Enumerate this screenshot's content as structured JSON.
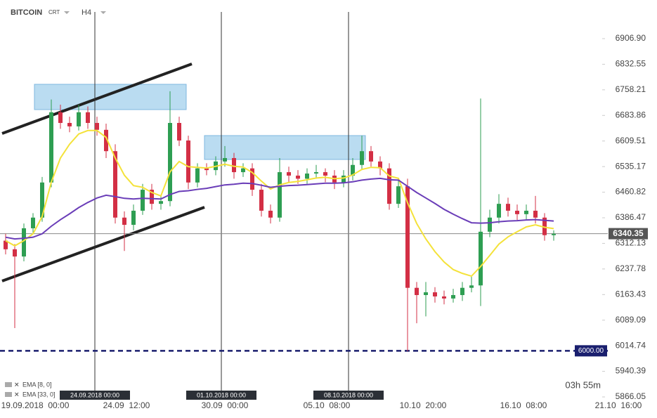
{
  "header": {
    "symbol": "BITCOIN",
    "mode": "CRT",
    "interval": "H4"
  },
  "legend": [
    "EMA [8, 0]",
    "EMA [33, 0]"
  ],
  "countdown": "03h 55m",
  "chart_data": {
    "type": "candlestick",
    "ylim": [
      5866.05,
      6906.9
    ],
    "yticks": [
      {
        "value": 6906.9,
        "label": "6906.90"
      },
      6832.55,
      6758.21,
      6683.86,
      6609.51,
      6535.17,
      6460.82,
      6386.47,
      6312.13,
      6237.78,
      6163.43,
      6089.09,
      6014.74,
      5940.39,
      5866.05
    ],
    "x_labels": [
      "19.09.2018  00:00",
      "24.09  12:00",
      "30.09  00:00",
      "05.10  08:00",
      "10.10  20:00",
      "16.10  08:00",
      "21.10  16:00"
    ],
    "markers": [
      "24.09.2018 00:00",
      "01.10.2018 00:00",
      "08.10.2018 00:00"
    ],
    "up_color": "#2e9e52",
    "down_color": "#d32f45",
    "candles": [
      {
        "o": 6320,
        "h": 6340,
        "l": 6280,
        "c": 6295
      },
      {
        "o": 6295,
        "h": 6310,
        "l": 6066,
        "c": 6274
      },
      {
        "o": 6274,
        "h": 6370,
        "l": 6260,
        "c": 6356
      },
      {
        "o": 6356,
        "h": 6400,
        "l": 6340,
        "c": 6387
      },
      {
        "o": 6387,
        "h": 6505,
        "l": 6375,
        "c": 6489
      },
      {
        "o": 6489,
        "h": 6730,
        "l": 6475,
        "c": 6693
      },
      {
        "o": 6693,
        "h": 6715,
        "l": 6645,
        "c": 6662
      },
      {
        "o": 6662,
        "h": 6680,
        "l": 6635,
        "c": 6652
      },
      {
        "o": 6652,
        "h": 6715,
        "l": 6640,
        "c": 6693
      },
      {
        "o": 6693,
        "h": 6710,
        "l": 6645,
        "c": 6662
      },
      {
        "o": 6662,
        "h": 6680,
        "l": 6625,
        "c": 6642
      },
      {
        "o": 6642,
        "h": 6660,
        "l": 6560,
        "c": 6580
      },
      {
        "o": 6580,
        "h": 6600,
        "l": 6370,
        "c": 6387
      },
      {
        "o": 6387,
        "h": 6405,
        "l": 6290,
        "c": 6366
      },
      {
        "o": 6366,
        "h": 6425,
        "l": 6350,
        "c": 6407
      },
      {
        "o": 6407,
        "h": 6485,
        "l": 6395,
        "c": 6468
      },
      {
        "o": 6468,
        "h": 6485,
        "l": 6410,
        "c": 6427
      },
      {
        "o": 6427,
        "h": 6450,
        "l": 6410,
        "c": 6435
      },
      {
        "o": 6435,
        "h": 6754,
        "l": 6420,
        "c": 6662
      },
      {
        "o": 6662,
        "h": 6680,
        "l": 6595,
        "c": 6611
      },
      {
        "o": 6611,
        "h": 6625,
        "l": 6470,
        "c": 6489
      },
      {
        "o": 6489,
        "h": 6545,
        "l": 6475,
        "c": 6530
      },
      {
        "o": 6530,
        "h": 6545,
        "l": 6510,
        "c": 6525
      },
      {
        "o": 6525,
        "h": 6565,
        "l": 6510,
        "c": 6550
      },
      {
        "o": 6550,
        "h": 6595,
        "l": 6535,
        "c": 6560
      },
      {
        "o": 6560,
        "h": 6575,
        "l": 6500,
        "c": 6519
      },
      {
        "o": 6519,
        "h": 6545,
        "l": 6505,
        "c": 6530
      },
      {
        "o": 6530,
        "h": 6545,
        "l": 6450,
        "c": 6468
      },
      {
        "o": 6468,
        "h": 6485,
        "l": 6390,
        "c": 6407
      },
      {
        "o": 6407,
        "h": 6425,
        "l": 6370,
        "c": 6387
      },
      {
        "o": 6387,
        "h": 6560,
        "l": 6375,
        "c": 6519
      },
      {
        "o": 6519,
        "h": 6535,
        "l": 6490,
        "c": 6509
      },
      {
        "o": 6509,
        "h": 6525,
        "l": 6485,
        "c": 6500
      },
      {
        "o": 6500,
        "h": 6530,
        "l": 6485,
        "c": 6515
      },
      {
        "o": 6515,
        "h": 6540,
        "l": 6500,
        "c": 6519
      },
      {
        "o": 6519,
        "h": 6530,
        "l": 6490,
        "c": 6509
      },
      {
        "o": 6509,
        "h": 6525,
        "l": 6470,
        "c": 6489
      },
      {
        "o": 6489,
        "h": 6525,
        "l": 6475,
        "c": 6509
      },
      {
        "o": 6509,
        "h": 6560,
        "l": 6495,
        "c": 6540
      },
      {
        "o": 6540,
        "h": 6625,
        "l": 6525,
        "c": 6580
      },
      {
        "o": 6580,
        "h": 6595,
        "l": 6535,
        "c": 6550
      },
      {
        "o": 6550,
        "h": 6565,
        "l": 6510,
        "c": 6530
      },
      {
        "o": 6530,
        "h": 6545,
        "l": 6410,
        "c": 6427
      },
      {
        "o": 6427,
        "h": 6495,
        "l": 6415,
        "c": 6478
      },
      {
        "o": 6478,
        "h": 6500,
        "l": 5999,
        "c": 6183
      },
      {
        "o": 6183,
        "h": 6200,
        "l": 6080,
        "c": 6162
      },
      {
        "o": 6162,
        "h": 6200,
        "l": 6100,
        "c": 6170
      },
      {
        "o": 6170,
        "h": 6185,
        "l": 6140,
        "c": 6158
      },
      {
        "o": 6158,
        "h": 6175,
        "l": 6135,
        "c": 6152
      },
      {
        "o": 6152,
        "h": 6180,
        "l": 6140,
        "c": 6162
      },
      {
        "o": 6162,
        "h": 6200,
        "l": 6145,
        "c": 6183
      },
      {
        "o": 6183,
        "h": 6215,
        "l": 6170,
        "c": 6190
      },
      {
        "o": 6190,
        "h": 6733,
        "l": 6130,
        "c": 6346
      },
      {
        "o": 6346,
        "h": 6410,
        "l": 6330,
        "c": 6387
      },
      {
        "o": 6387,
        "h": 6455,
        "l": 6370,
        "c": 6427
      },
      {
        "o": 6427,
        "h": 6445,
        "l": 6390,
        "c": 6407
      },
      {
        "o": 6407,
        "h": 6425,
        "l": 6380,
        "c": 6397
      },
      {
        "o": 6397,
        "h": 6425,
        "l": 6380,
        "c": 6407
      },
      {
        "o": 6407,
        "h": 6450,
        "l": 6370,
        "c": 6387
      },
      {
        "o": 6387,
        "h": 6400,
        "l": 6320,
        "c": 6336
      },
      {
        "o": 6336,
        "h": 6350,
        "l": 6320,
        "c": 6340
      }
    ],
    "series": [
      {
        "name": "EMA [8, 0]",
        "color": "#f4e23a",
        "values": [
          6320,
          6305,
          6320,
          6340,
          6390,
          6490,
          6560,
          6600,
          6630,
          6640,
          6640,
          6620,
          6560,
          6510,
          6480,
          6475,
          6460,
          6450,
          6520,
          6550,
          6535,
          6533,
          6531,
          6536,
          6542,
          6536,
          6534,
          6518,
          6493,
          6470,
          6482,
          6489,
          6492,
          6497,
          6502,
          6504,
          6500,
          6502,
          6511,
          6527,
          6533,
          6532,
          6508,
          6501,
          6430,
          6370,
          6325,
          6288,
          6258,
          6236,
          6225,
          6217,
          6245,
          6277,
          6310,
          6331,
          6346,
          6360,
          6366,
          6359,
          6355
        ]
      },
      {
        "name": "EMA [33, 0]",
        "color": "#6a3db8",
        "values": [
          6330,
          6325,
          6327,
          6330,
          6340,
          6362,
          6381,
          6398,
          6416,
          6431,
          6444,
          6452,
          6448,
          6443,
          6441,
          6443,
          6442,
          6441,
          6454,
          6463,
          6465,
          6469,
          6472,
          6477,
          6482,
          6484,
          6487,
          6486,
          6481,
          6475,
          6478,
          6480,
          6481,
          6483,
          6485,
          6487,
          6487,
          6488,
          6491,
          6496,
          6499,
          6501,
          6497,
          6496,
          6478,
          6460,
          6444,
          6428,
          6411,
          6397,
          6384,
          6372,
          6371,
          6372,
          6375,
          6377,
          6378,
          6380,
          6381,
          6379,
          6377
        ]
      }
    ],
    "levels": [
      {
        "value": 6340.35,
        "value_label": "6340.35",
        "color": "#888888",
        "dashed": false
      },
      {
        "value": 6000,
        "value_label": "6000.00",
        "color": "#1a1f6e",
        "dashed": true
      }
    ]
  }
}
